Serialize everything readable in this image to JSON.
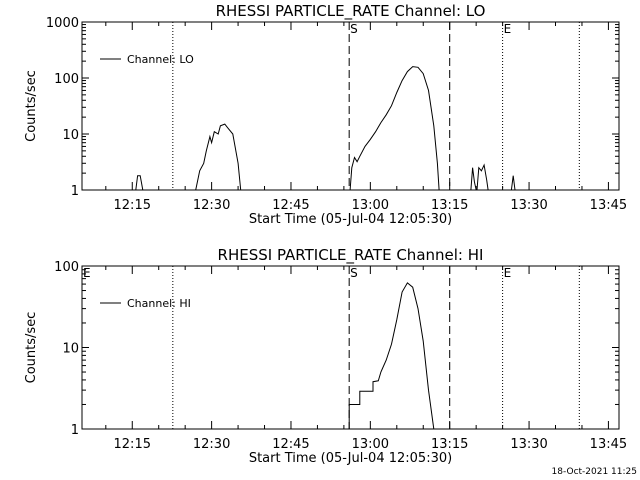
{
  "chart_data": [
    {
      "type": "line",
      "title": "RHESSI PARTICLE_RATE Channel: LO",
      "xlabel": "Start Time (05-Jul-04 12:05:30)",
      "ylabel": "Counts/sec",
      "xlim": [
        "12:05:30",
        "13:47:00"
      ],
      "ylim": [
        1,
        1000
      ],
      "yscale": "log",
      "xticks": [
        "12:15",
        "12:30",
        "12:45",
        "13:00",
        "13:15",
        "13:30",
        "13:45"
      ],
      "yticks": [
        "1",
        "10",
        "100",
        "1000"
      ],
      "legend_position": "top-left",
      "grid": false,
      "series": [
        {
          "name": "Channel: LO",
          "segments": [
            [
              [
                "12:15:40",
                1
              ],
              [
                "12:16:00",
                1.8
              ],
              [
                "12:16:30",
                1.8
              ],
              [
                "12:17:00",
                1
              ]
            ],
            [
              [
                "12:27:00",
                1
              ],
              [
                "12:27:45",
                2.2
              ],
              [
                "12:28:30",
                3
              ],
              [
                "12:29:00",
                5
              ],
              [
                "12:29:40",
                9
              ],
              [
                "12:30:00",
                7
              ],
              [
                "12:30:30",
                11
              ],
              [
                "12:31:15",
                10
              ],
              [
                "12:31:40",
                14
              ],
              [
                "12:32:30",
                15
              ],
              [
                "12:33:00",
                13
              ],
              [
                "12:34:00",
                10
              ],
              [
                "12:35:00",
                3
              ],
              [
                "12:35:30",
                1
              ]
            ],
            [
              [
                "12:56:10",
                1
              ],
              [
                "12:56:30",
                2.5
              ],
              [
                "12:57:00",
                3.8
              ],
              [
                "12:57:30",
                3.2
              ],
              [
                "12:58:00",
                4
              ],
              [
                "12:59:00",
                6
              ],
              [
                "13:00:00",
                8
              ],
              [
                "13:01:00",
                11
              ],
              [
                "13:02:00",
                16
              ],
              [
                "13:03:00",
                22
              ],
              [
                "13:04:00",
                32
              ],
              [
                "13:05:00",
                55
              ],
              [
                "13:06:00",
                90
              ],
              [
                "13:07:00",
                130
              ],
              [
                "13:08:00",
                160
              ],
              [
                "13:09:00",
                155
              ],
              [
                "13:10:00",
                120
              ],
              [
                "13:11:00",
                60
              ],
              [
                "13:12:00",
                14
              ],
              [
                "13:12:40",
                3
              ],
              [
                "13:13:00",
                1
              ]
            ],
            [
              [
                "13:19:00",
                1
              ],
              [
                "13:19:20",
                2.5
              ],
              [
                "13:19:40",
                1.4
              ],
              [
                "13:20:00",
                1
              ]
            ],
            [
              [
                "13:20:10",
                1
              ],
              [
                "13:20:30",
                2.5
              ],
              [
                "13:21:00",
                2.2
              ],
              [
                "13:21:30",
                2.8
              ],
              [
                "13:22:00",
                1.5
              ],
              [
                "13:22:15",
                1
              ]
            ],
            [
              [
                "13:26:40",
                1
              ],
              [
                "13:27:00",
                1.8
              ],
              [
                "13:27:20",
                1
              ]
            ]
          ]
        }
      ],
      "markers": {
        "dotted": [
          "12:22:40",
          "13:25:00",
          "13:39:30"
        ],
        "dashed": [
          "12:56:00",
          "13:15:00"
        ],
        "labels": [
          {
            "text": "S",
            "at": "12:56:00"
          },
          {
            "text": "E",
            "at": "13:25:00"
          }
        ]
      }
    },
    {
      "type": "line",
      "title": "RHESSI PARTICLE_RATE Channel: HI",
      "xlabel": "Start Time (05-Jul-04 12:05:30)",
      "ylabel": "Counts/sec",
      "xlim": [
        "12:05:30",
        "13:47:00"
      ],
      "ylim": [
        1,
        100
      ],
      "yscale": "log",
      "xticks": [
        "12:15",
        "12:30",
        "12:45",
        "13:00",
        "13:15",
        "13:30",
        "13:45"
      ],
      "yticks": [
        "1",
        "10",
        "100"
      ],
      "legend_position": "top-left",
      "grid": false,
      "series": [
        {
          "name": "Channel: HI",
          "segments": [
            [
              [
                "12:56:00",
                1
              ],
              [
                "12:56:00",
                2
              ],
              [
                "12:58:00",
                2
              ],
              [
                "12:58:00",
                2.9
              ],
              [
                "13:00:30",
                2.9
              ],
              [
                "13:00:30",
                3.8
              ],
              [
                "13:01:30",
                3.9
              ],
              [
                "13:02:00",
                5
              ],
              [
                "13:03:00",
                7
              ],
              [
                "13:04:00",
                11
              ],
              [
                "13:05:00",
                22
              ],
              [
                "13:06:00",
                48
              ],
              [
                "13:07:00",
                62
              ],
              [
                "13:08:00",
                55
              ],
              [
                "13:09:00",
                30
              ],
              [
                "13:10:00",
                12
              ],
              [
                "13:11:00",
                3
              ],
              [
                "13:12:00",
                1
              ]
            ]
          ]
        }
      ],
      "markers": {
        "dotted": [
          "12:22:40",
          "13:25:00",
          "13:39:30"
        ],
        "dashed": [
          "12:56:00",
          "13:15:00"
        ],
        "labels": [
          {
            "text": "E",
            "at": "left-edge"
          },
          {
            "text": "S",
            "at": "12:56:00"
          },
          {
            "text": "E",
            "at": "13:25:00"
          }
        ]
      }
    }
  ],
  "footer": {
    "timestamp": "18-Oct-2021 11:25"
  }
}
